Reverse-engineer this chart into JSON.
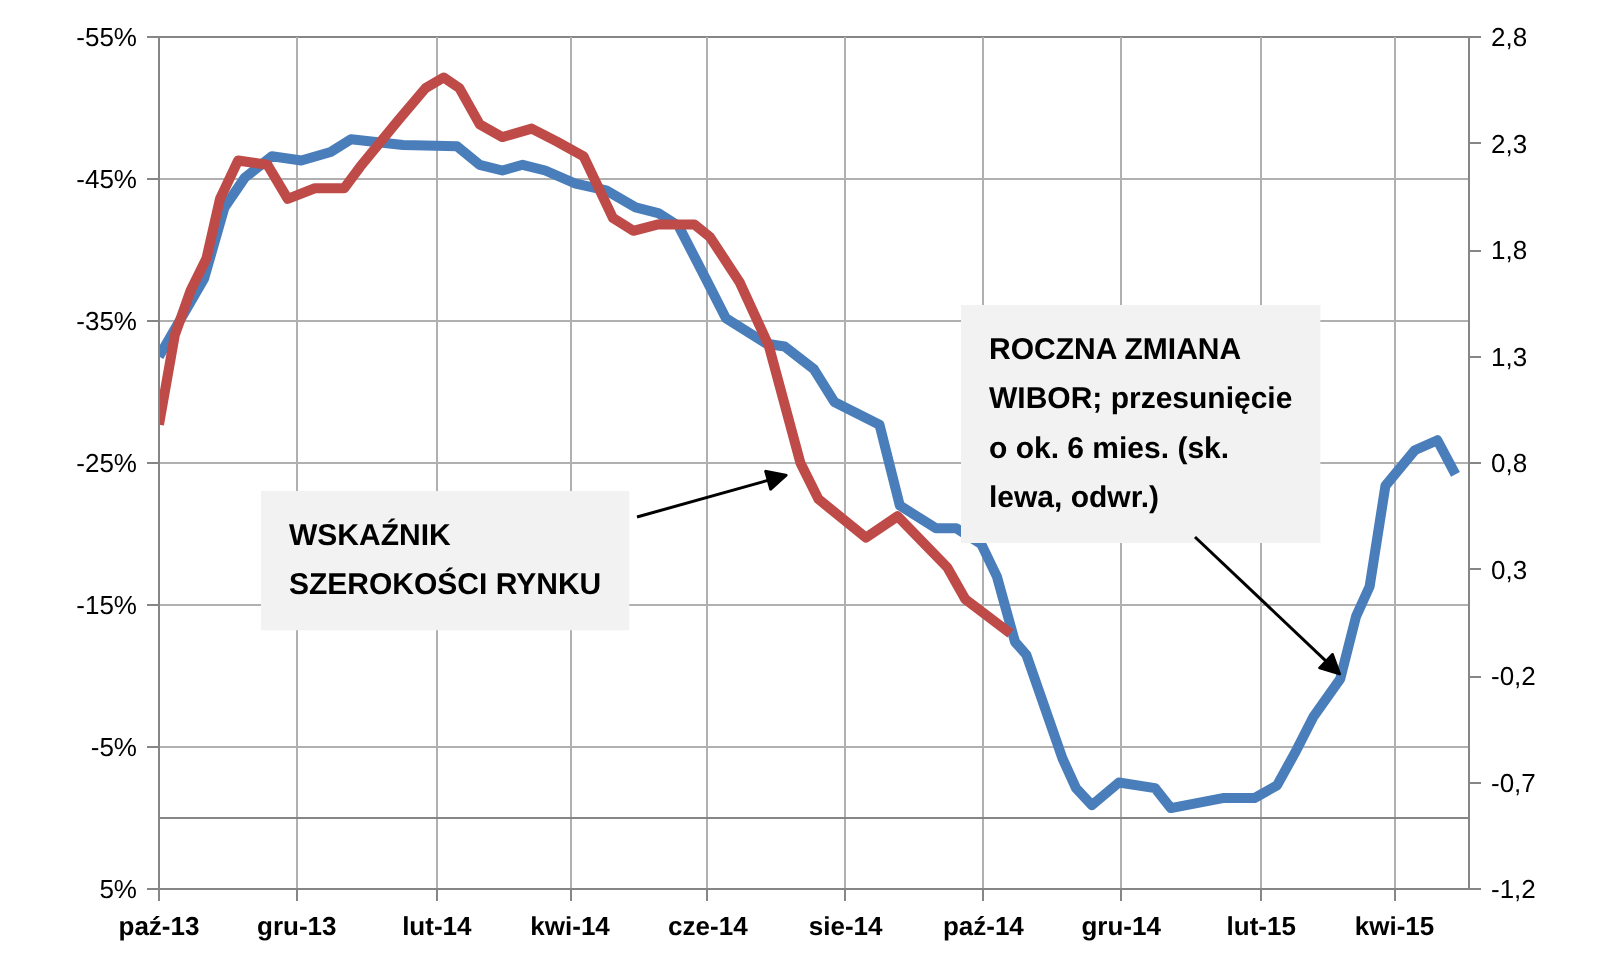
{
  "chart_data": {
    "type": "line",
    "x": [
      "2013-10-01",
      "2013-10-21",
      "2013-10-30",
      "2013-11-08",
      "2013-11-20",
      "2013-12-03",
      "2013-12-16",
      "2013-12-25",
      "2014-01-05",
      "2014-01-17",
      "2014-02-10",
      "2014-02-20",
      "2014-03-02",
      "2014-03-11",
      "2014-03-21",
      "2014-04-03",
      "2014-04-17",
      "2014-04-30",
      "2014-05-10",
      "2014-05-19",
      "2014-05-31",
      "2014-06-09",
      "2014-06-27",
      "2014-07-05",
      "2014-07-18",
      "2014-07-27",
      "2014-08-16",
      "2014-08-25",
      "2014-09-10",
      "2014-09-19",
      "2014-09-30",
      "2014-10-07",
      "2014-10-15",
      "2014-10-20",
      "2014-11-05",
      "2014-11-11",
      "2014-11-18",
      "2014-11-30",
      "2014-12-16",
      "2014-12-23",
      "2015-01-15",
      "2015-01-29",
      "2015-02-08",
      "2015-02-16",
      "2015-02-24",
      "2015-03-08",
      "2015-03-15",
      "2015-03-21",
      "2015-03-28",
      "2015-04-10",
      "2015-04-20",
      "2015-04-28"
    ],
    "series": [
      {
        "color": "#4a7ebb",
        "values": [
          -32.5,
          -38.0,
          -43.0,
          -45.1,
          -46.6,
          -46.3,
          -46.9,
          -47.8,
          -47.6,
          -47.4,
          -47.3,
          -46.0,
          -45.6,
          -46.0,
          -45.6,
          -44.7,
          -44.2,
          -43.0,
          -42.6,
          -41.7,
          -38.0,
          -35.2,
          -33.4,
          -33.2,
          -31.6,
          -29.3,
          -27.7,
          -22.0,
          -20.4,
          -20.4,
          -19.3,
          -17.0,
          -12.4,
          -11.5,
          -4.2,
          -2.1,
          -0.9,
          -2.5,
          -2.1,
          -0.7,
          -1.4,
          -1.4,
          -2.3,
          -4.6,
          -7.1,
          -9.8,
          -14.2,
          -16.3,
          -23.4,
          -25.9,
          -26.6,
          -24.2
        ]
      },
      {
        "color": "#be4b48",
        "axis": "y2",
        "x": [
          "2013-10-01",
          "2013-10-08",
          "2013-10-15",
          "2013-10-22",
          "2013-10-28",
          "2013-11-05",
          "2013-11-18",
          "2013-11-27",
          "2013-12-09",
          "2013-12-22",
          "2013-12-29",
          "2014-01-15",
          "2014-01-27",
          "2014-02-04",
          "2014-02-11",
          "2014-02-20",
          "2014-03-02",
          "2014-03-15",
          "2014-03-26",
          "2014-04-07",
          "2014-04-20",
          "2014-04-29",
          "2014-05-10",
          "2014-05-26",
          "2014-06-02",
          "2014-06-15",
          "2014-06-28",
          "2014-07-12",
          "2014-07-20",
          "2014-08-10",
          "2014-08-24",
          "2014-09-15",
          "2014-09-23",
          "2014-10-13"
        ],
        "values": [
          0.98,
          1.4,
          1.61,
          1.76,
          2.04,
          2.22,
          2.2,
          2.04,
          2.09,
          2.09,
          2.19,
          2.41,
          2.56,
          2.61,
          2.56,
          2.39,
          2.33,
          2.37,
          2.31,
          2.24,
          1.95,
          1.89,
          1.92,
          1.92,
          1.86,
          1.65,
          1.35,
          0.8,
          0.63,
          0.45,
          0.55,
          0.31,
          0.16,
          0.0
        ]
      }
    ],
    "xlim": [
      "2013-10-01",
      "2015-05-04"
    ],
    "xticks": [
      {
        "value": "2013-10-01",
        "label": "paź-13"
      },
      {
        "value": "2013-12-01",
        "label": "gru-13"
      },
      {
        "value": "2014-02-01",
        "label": "lut-14"
      },
      {
        "value": "2014-04-01",
        "label": "kwi-14"
      },
      {
        "value": "2014-06-01",
        "label": "cze-14"
      },
      {
        "value": "2014-08-01",
        "label": "sie-14"
      },
      {
        "value": "2014-10-01",
        "label": "paź-14"
      },
      {
        "value": "2014-12-01",
        "label": "gru-14"
      },
      {
        "value": "2015-02-01",
        "label": "lut-15"
      },
      {
        "value": "2015-04-01",
        "label": "kwi-15"
      }
    ],
    "ylim": [
      5,
      -55
    ],
    "yticks": [
      {
        "value": -55,
        "label": "-55%"
      },
      {
        "value": -45,
        "label": "-45%"
      },
      {
        "value": -35,
        "label": "-35%"
      },
      {
        "value": -25,
        "label": "-25%"
      },
      {
        "value": -15,
        "label": "-15%"
      },
      {
        "value": -5,
        "label": "-5%"
      },
      {
        "value": 5,
        "label": "5%"
      }
    ],
    "y2lim": [
      -1.2,
      2.8
    ],
    "y2ticks": [
      {
        "value": 2.8,
        "label": "2,8"
      },
      {
        "value": 2.3,
        "label": "2,3"
      },
      {
        "value": 1.8,
        "label": "1,8"
      },
      {
        "value": 1.3,
        "label": "1,3"
      },
      {
        "value": 0.8,
        "label": "0,8"
      },
      {
        "value": 0.3,
        "label": "0,3"
      },
      {
        "value": -0.2,
        "label": "-0,2"
      },
      {
        "value": -0.7,
        "label": "-0,7"
      },
      {
        "value": -1.2,
        "label": "-1,2"
      }
    ],
    "ref_lines": [
      {
        "axis": "y",
        "value": 0,
        "color": "#868686"
      }
    ],
    "annotations": [
      "WSKAŹNIK\nSZEROKOŚCI RYNKU",
      {
        "text": "ROCZNA ZMIANA\nWIBOR; przesunięcie\no ok. 6 mies. (sk.\nlewa, odwr.)",
        "x": "2015-03-08",
        "y": -10.1
      }
    ],
    "grid": true,
    "marker": "none",
    "line_style": "solid"
  }
}
